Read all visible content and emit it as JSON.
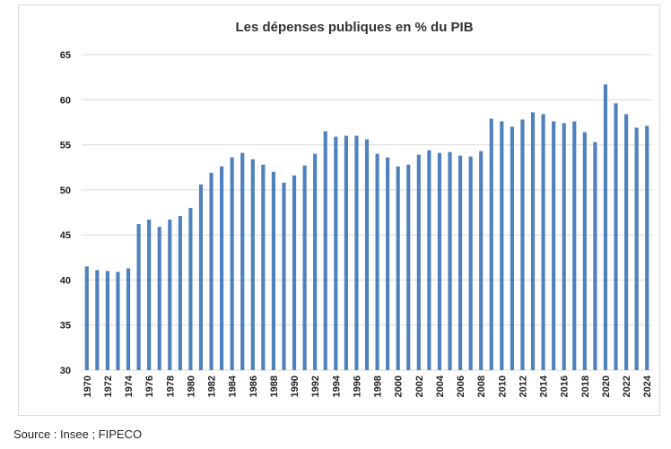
{
  "chart_data": {
    "type": "bar",
    "title": "Les dépenses publiques  en % du PIB",
    "xlabel": "",
    "ylabel": "",
    "ylim": [
      30,
      65
    ],
    "yticks": [
      30,
      35,
      40,
      45,
      50,
      55,
      60,
      65
    ],
    "grid": true,
    "legend": "none",
    "bar_color": "#4f81bd",
    "grid_color": "#d9d9d9",
    "x_tick_every": 2,
    "categories": [
      "1970",
      "1971",
      "1972",
      "1973",
      "1974",
      "1975",
      "1976",
      "1977",
      "1978",
      "1979",
      "1980",
      "1981",
      "1982",
      "1983",
      "1984",
      "1985",
      "1986",
      "1987",
      "1988",
      "1989",
      "1990",
      "1991",
      "1992",
      "1993",
      "1994",
      "1995",
      "1996",
      "1997",
      "1998",
      "1999",
      "2000",
      "2001",
      "2002",
      "2003",
      "2004",
      "2005",
      "2006",
      "2007",
      "2008",
      "2009",
      "2010",
      "2011",
      "2012",
      "2013",
      "2014",
      "2015",
      "2016",
      "2017",
      "2018",
      "2019",
      "2020",
      "2021",
      "2022",
      "2023",
      "2024"
    ],
    "values": [
      41.5,
      41.1,
      41.0,
      40.9,
      41.3,
      46.2,
      46.7,
      45.9,
      46.7,
      47.1,
      48.0,
      50.6,
      51.9,
      52.6,
      53.6,
      54.1,
      53.4,
      52.8,
      52.0,
      50.8,
      51.6,
      52.7,
      54.0,
      56.5,
      55.9,
      56.0,
      56.0,
      55.6,
      54.0,
      53.6,
      52.6,
      52.8,
      53.9,
      54.4,
      54.1,
      54.2,
      53.8,
      53.7,
      54.3,
      57.9,
      57.6,
      57.0,
      57.8,
      58.6,
      58.4,
      57.6,
      57.4,
      57.6,
      56.4,
      55.3,
      61.7,
      59.6,
      58.4,
      56.9,
      57.1
    ]
  },
  "source": "Source : Insee ; FIPECO"
}
